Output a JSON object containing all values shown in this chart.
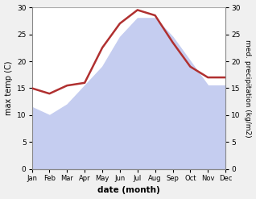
{
  "months": [
    "Jan",
    "Feb",
    "Mar",
    "Apr",
    "May",
    "Jun",
    "Jul",
    "Aug",
    "Sep",
    "Oct",
    "Nov",
    "Dec"
  ],
  "month_positions": [
    0,
    1,
    2,
    3,
    4,
    5,
    6,
    7,
    8,
    9,
    10,
    11
  ],
  "temperature": [
    11.5,
    10.0,
    12.0,
    15.5,
    19.0,
    24.5,
    28.0,
    28.0,
    24.5,
    20.0,
    15.5,
    15.5
  ],
  "precipitation": [
    15.0,
    14.0,
    15.5,
    16.0,
    22.5,
    27.0,
    29.5,
    28.5,
    23.5,
    19.0,
    17.0,
    17.0
  ],
  "temp_fill_color": "#c5cdf0",
  "precip_color": "#b03030",
  "temp_ylim": [
    0,
    30
  ],
  "precip_ylim": [
    0,
    30
  ],
  "xlabel": "date (month)",
  "ylabel_left": "max temp (C)",
  "ylabel_right": "med. precipitation (kg/m2)",
  "background_color": "#f0f0f0",
  "plot_bg_color": "#ffffff",
  "yticks": [
    0,
    5,
    10,
    15,
    20,
    25,
    30
  ]
}
